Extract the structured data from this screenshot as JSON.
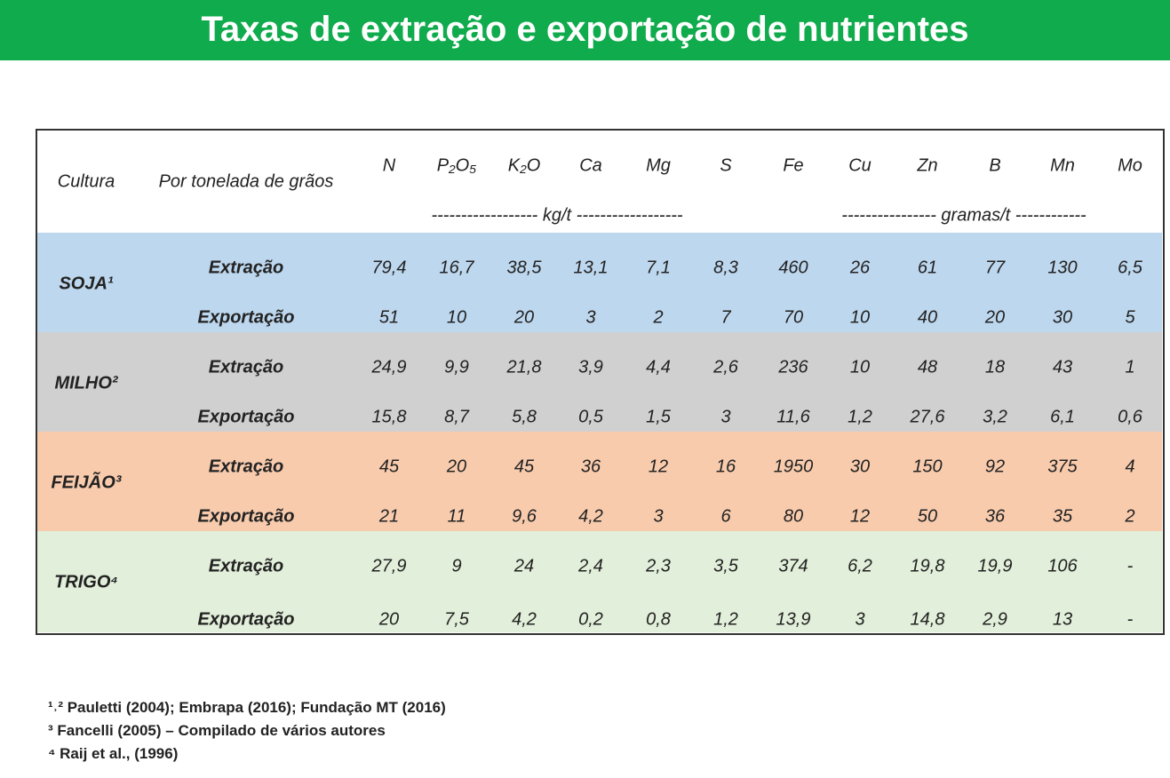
{
  "header": {
    "title": "Taxas de extração e exportação de nutrientes"
  },
  "table": {
    "columns": [
      "Cultura",
      "Por tonelada de grãos",
      "N",
      "P₂O₅",
      "K₂O",
      "Ca",
      "Mg",
      "S",
      "Fe",
      "Cu",
      "Zn",
      "B",
      "Mn",
      "Mo"
    ],
    "units": [
      "------------------ kg/t ------------------",
      "---------------- gramas/t ------------"
    ],
    "groups": [
      {
        "name": "SOJA¹",
        "rows": [
          {
            "label": "Extração",
            "values": [
              "79,4",
              "16,7",
              "38,5",
              "13,1",
              "7,1",
              "8,3",
              "460",
              "26",
              "61",
              "77",
              "130",
              "6,5"
            ]
          },
          {
            "label": "Exportação",
            "values": [
              "51",
              "10",
              "20",
              "3",
              "2",
              "7",
              "70",
              "10",
              "40",
              "20",
              "30",
              "5"
            ]
          }
        ]
      },
      {
        "name": "MILHO²",
        "rows": [
          {
            "label": "Extração",
            "values": [
              "24,9",
              "9,9",
              "21,8",
              "3,9",
              "4,4",
              "2,6",
              "236",
              "10",
              "48",
              "18",
              "43",
              "1"
            ]
          },
          {
            "label": "Exportação",
            "values": [
              "15,8",
              "8,7",
              "5,8",
              "0,5",
              "1,5",
              "3",
              "11,6",
              "1,2",
              "27,6",
              "3,2",
              "6,1",
              "0,6"
            ]
          }
        ]
      },
      {
        "name": "FEIJÃO³",
        "rows": [
          {
            "label": "Extração",
            "values": [
              "45",
              "20",
              "45",
              "36",
              "12",
              "16",
              "1950",
              "30",
              "150",
              "92",
              "375",
              "4"
            ]
          },
          {
            "label": "Exportação",
            "values": [
              "21",
              "11",
              "9,6",
              "4,2",
              "3",
              "6",
              "80",
              "12",
              "50",
              "36",
              "35",
              "2"
            ]
          }
        ]
      },
      {
        "name": "TRIGO⁴",
        "rows": [
          {
            "label": "Extração",
            "values": [
              "27,9",
              "9",
              "24",
              "2,4",
              "2,3",
              "3,5",
              "374",
              "6,2",
              "19,8",
              "19,9",
              "106",
              "-"
            ]
          },
          {
            "label": "Exportação",
            "values": [
              "20",
              "7,5",
              "4,2",
              "0,2",
              "0,8",
              "1,2",
              "13,9",
              "3",
              "14,8",
              "2,9",
              "13",
              "-"
            ]
          }
        ]
      }
    ]
  },
  "footnotes": [
    "¹˒² Pauletti (2004); Embrapa (2016); Fundação MT (2016)",
    "³ Fancelli (2005) – Compilado de vários autores",
    "⁴ Raij et al., (1996)"
  ]
}
